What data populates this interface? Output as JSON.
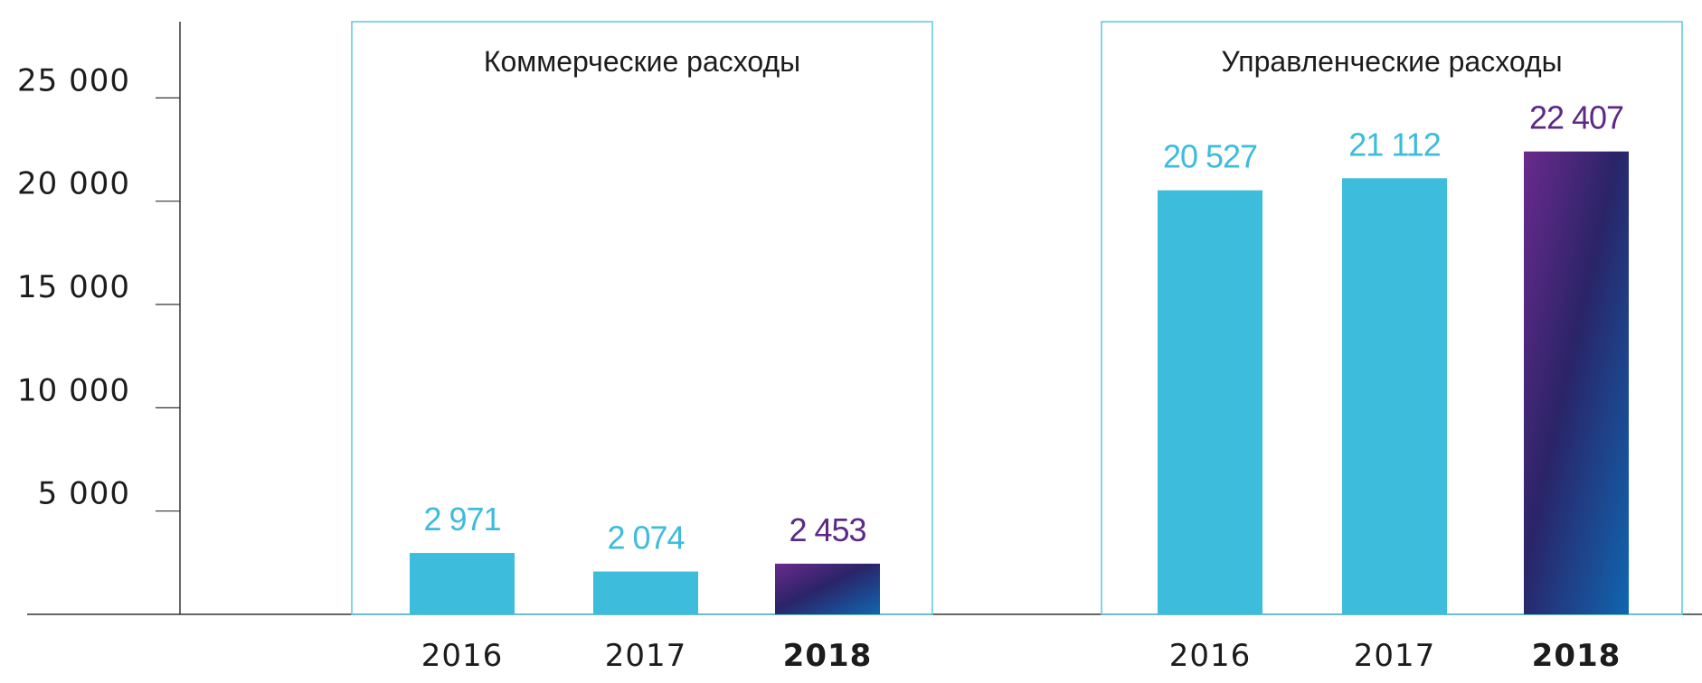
{
  "chart_data": {
    "type": "bar",
    "ylim": [
      0,
      28000
    ],
    "y_ticks": [
      {
        "value": 5000,
        "label": "5 000"
      },
      {
        "value": 10000,
        "label": "10 000"
      },
      {
        "value": 15000,
        "label": "15 000"
      },
      {
        "value": 20000,
        "label": "20 000"
      },
      {
        "value": 25000,
        "label": "25 000"
      }
    ],
    "grid": false,
    "colors": {
      "past": "#3dbcdc",
      "current_start": "#6a2a8c",
      "current_mid": "#2a2468",
      "current_end": "#1066b0",
      "current_label": "#5c2a85",
      "panel_border": "#5ec7dc",
      "axis": "#333333"
    },
    "panels": [
      {
        "title": "Коммерческие расходы",
        "categories": [
          "2016",
          "2017",
          "2018"
        ],
        "values": [
          2971,
          2074,
          2453
        ],
        "value_labels": [
          "2 971",
          "2 074",
          "2 453"
        ],
        "highlight_index": 2
      },
      {
        "title": "Управленческие расходы",
        "categories": [
          "2016",
          "2017",
          "2018"
        ],
        "values": [
          20527,
          21112,
          22407
        ],
        "value_labels": [
          "20 527",
          "21 112",
          "22 407"
        ],
        "highlight_index": 2
      }
    ]
  }
}
